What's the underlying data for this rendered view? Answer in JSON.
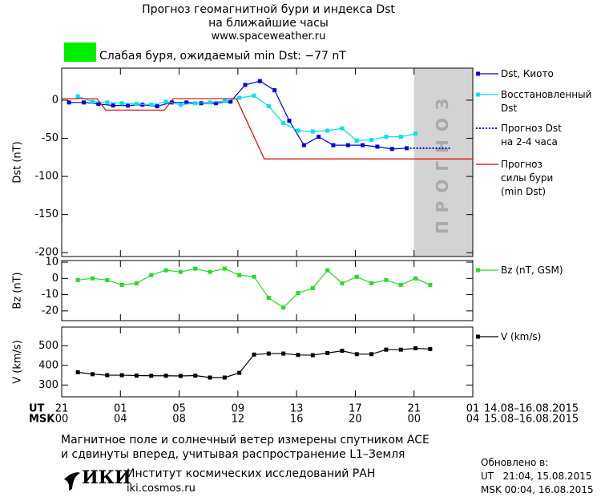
{
  "header": {
    "title_lines": [
      "Прогноз геомагнитной бури и индекса Dst",
      "на ближайшие часы"
    ],
    "url": "www.spaceweather.ru"
  },
  "status": {
    "color": "#00ee00",
    "text": "Слабая буря, ожидаемый min Dst: −77 nT"
  },
  "chart_data": [
    {
      "type": "line",
      "ylabel": "Dst (nT)",
      "ylim": [
        -205,
        42
      ],
      "yticks": [
        0,
        -50,
        -100,
        -150,
        -200
      ],
      "forecast_zone": {
        "x": [
          24,
          28
        ],
        "label": "ПРОГНОЗ",
        "color": "#d3d3d3"
      },
      "legend": "right",
      "series": [
        {
          "name": "Dst, Киото",
          "color": "#0000dd",
          "marker": "square",
          "style": "solid",
          "x": [
            0.5,
            1.5,
            2.5,
            3.5,
            4.5,
            5.5,
            6.5,
            7.5,
            8.5,
            9.5,
            10.5,
            11.5,
            12.5,
            13.5,
            14.5,
            15.5,
            16.5,
            17.5,
            18.5,
            19.5,
            20.5,
            21.5,
            22.5,
            23.5
          ],
          "values": [
            -3,
            -3,
            -5,
            -7,
            -7,
            -6,
            -8,
            -3,
            -3,
            -4,
            -4,
            -2,
            20,
            25,
            13,
            -27,
            -59,
            -48,
            -59,
            -59,
            -59,
            -61,
            -64,
            -63
          ]
        },
        {
          "name": "Восстановленный\nDst",
          "color": "#00e0ee",
          "marker": "square",
          "style": "solid",
          "x": [
            1.1,
            2.1,
            3.1,
            4.1,
            5.1,
            6.1,
            7.1,
            8.1,
            9.1,
            10.1,
            11.1,
            12.1,
            13.1,
            14.1,
            15.1,
            16.1,
            17.1,
            18.1,
            19.1,
            20.1,
            21.1,
            22.1,
            23.1,
            24.1
          ],
          "values": [
            5,
            -2,
            -3,
            -4,
            -5,
            -6,
            -2,
            -6,
            -4,
            -3,
            -1,
            3,
            6,
            -8,
            -30,
            -40,
            -41,
            -40,
            -37,
            -53,
            -52,
            -48,
            -48,
            -44
          ]
        },
        {
          "name": "Прогноз Dst\nна 2-4 часа",
          "color": "#0000dd",
          "marker": "none",
          "style": "dotted",
          "x": [
            23.5,
            26.5
          ],
          "values": [
            -63,
            -63
          ]
        },
        {
          "name": "Прогноз\nсилы бури\n(min Dst)",
          "color": "#dd0000",
          "marker": "none",
          "style": "solid",
          "x": [
            0,
            2.4,
            3,
            7,
            7.6,
            11.9,
            13.8,
            28
          ],
          "values": [
            2,
            2,
            -13,
            -13,
            2,
            2,
            -77,
            -77
          ]
        }
      ]
    },
    {
      "type": "line",
      "ylabel": "Bz (nT)",
      "ylim": [
        -26,
        11
      ],
      "yticks": [
        10,
        0,
        -10,
        -20
      ],
      "legend": "right",
      "series": [
        {
          "name": "Bz (nT, GSM)",
          "color": "#22dd22",
          "marker": "square",
          "style": "solid",
          "x": [
            1.1,
            2.1,
            3.1,
            4.1,
            5.1,
            6.1,
            7.1,
            8.1,
            9.1,
            10.1,
            11.1,
            12.1,
            13.1,
            14.1,
            15.1,
            16.1,
            17.1,
            18.1,
            19.1,
            20.1,
            21.1,
            22.1,
            23.1,
            24.1,
            25.1
          ],
          "values": [
            -1,
            0,
            -1,
            -4,
            -3,
            2,
            5,
            4,
            6,
            4,
            6,
            2,
            1,
            -12,
            -18,
            -9,
            -6,
            5,
            -3,
            1,
            -3,
            -1,
            -4,
            0,
            -4
          ]
        }
      ]
    },
    {
      "type": "line",
      "ylabel": "V (km/s)",
      "ylim": [
        240,
        595
      ],
      "yticks": [
        300,
        400,
        500
      ],
      "legend": "right",
      "xlim": [
        0,
        28
      ],
      "xlabel": "UT",
      "xlabel2": "MSK",
      "xrange": "14.08–16.08.2015",
      "xrange2": "15.08–16.08.2015",
      "xticks": [
        {
          "value": 0,
          "label": "21"
        },
        {
          "value": 4,
          "label": "01"
        },
        {
          "value": 8,
          "label": "05"
        },
        {
          "value": 12,
          "label": "09"
        },
        {
          "value": 16,
          "label": "13"
        },
        {
          "value": 20,
          "label": "17"
        },
        {
          "value": 24,
          "label": "21"
        },
        {
          "value": 28,
          "label": "01"
        }
      ],
      "xticks2": [
        {
          "value": 0,
          "label": "00"
        },
        {
          "value": 4,
          "label": "04"
        },
        {
          "value": 8,
          "label": "08"
        },
        {
          "value": 12,
          "label": "12"
        },
        {
          "value": 16,
          "label": "16"
        },
        {
          "value": 20,
          "label": "20"
        },
        {
          "value": 24,
          "label": "00"
        },
        {
          "value": 28,
          "label": "04"
        }
      ],
      "series": [
        {
          "name": "V (km/s)",
          "color": "#000000",
          "marker": "square",
          "style": "solid",
          "x": [
            1.1,
            2.1,
            3.1,
            4.1,
            5.1,
            6.1,
            7.1,
            8.1,
            9.1,
            10.1,
            11.1,
            12.1,
            13.1,
            14.1,
            15.1,
            16.1,
            17.1,
            18.1,
            19.1,
            20.1,
            21.1,
            22.1,
            23.1,
            24.1,
            25.1
          ],
          "values": [
            365,
            355,
            350,
            350,
            348,
            347,
            347,
            346,
            348,
            338,
            338,
            362,
            455,
            460,
            460,
            453,
            452,
            463,
            474,
            457,
            457,
            480,
            480,
            487,
            483
          ]
        }
      ]
    }
  ],
  "note": "Магнитное поле и солнечный ветер измерены спутником ACE\nи сдвинуты вперед, учитывая распространение L1–Земля",
  "footer": {
    "logo": "ИКИ",
    "institute": "Институт космических исследований РАН",
    "site": "iki.cosmos.ru",
    "updated": "Обновлено в:",
    "updated_ut": "UT   21:04, 15.08.2015",
    "updated_msk": "MSK 00:04, 16.08.2015"
  }
}
